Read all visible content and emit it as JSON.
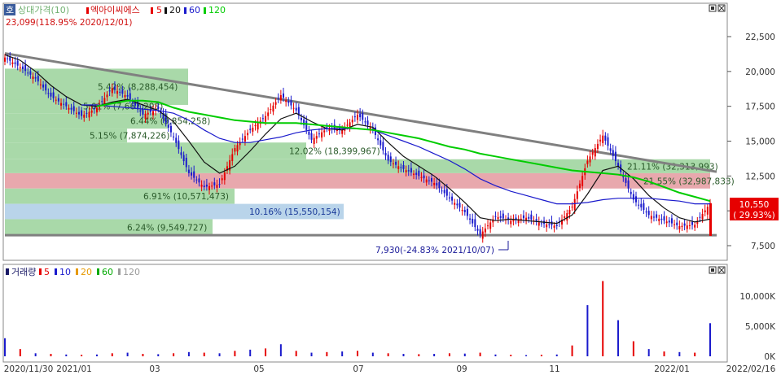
{
  "main_panel": {
    "legend": {
      "icon_glyph": "호",
      "indicator": "상대가격(10)",
      "ma_name": "엑아이씨에스",
      "ma_periods": [
        "5",
        "20",
        "60",
        "120"
      ],
      "ma_colors": [
        "#e60000",
        "#111111",
        "#1a1acc",
        "#00cc00"
      ]
    },
    "high_label": "23,099(118.95% 2020/12/01)",
    "low_label": "7,930(-24.83% 2021/10/07)",
    "current_price": "10,550",
    "current_change": "( 29.93%)"
  },
  "volume_panel": {
    "legend_title": "거래량",
    "legend_items": [
      {
        "label": "5",
        "color": "#e60000"
      },
      {
        "label": "10",
        "color": "#1a1acc"
      },
      {
        "label": "20",
        "color": "#e69900"
      },
      {
        "label": "60",
        "color": "#00aa00"
      },
      {
        "label": "120",
        "color": "#999999"
      }
    ]
  },
  "window_icons": [
    "maximize-icon",
    "close-icon"
  ],
  "chart_data": {
    "type": "candlestick",
    "y_axis": {
      "ticks": [
        7500,
        10000,
        12500,
        15000,
        17500,
        20000,
        22500
      ],
      "tick_labels": [
        "7,500",
        "10,000",
        "12,500",
        "15,000",
        "17,500",
        "20,000",
        "22,500"
      ]
    },
    "volume_axis": {
      "ticks": [
        0,
        5000,
        10000
      ],
      "tick_labels": [
        "0K",
        "5,000K",
        "10,000K"
      ]
    },
    "x_axis": {
      "tick_labels": [
        "2020/11/30",
        "2021/01",
        "03",
        "05",
        "07",
        "09",
        "11",
        "2022/01",
        "2022/02/16"
      ]
    },
    "price_bands": [
      {
        "label": "5.42% (8,288,454)",
        "low": 17600,
        "high": 20200,
        "color": "#a9d9a9"
      },
      {
        "label": "5.01% (7,667,298)",
        "low": 17000,
        "high": 18000,
        "color": "#a9d9a9"
      },
      {
        "label": "6.44% (9,854,258)",
        "low": 15900,
        "high": 17000,
        "color": "#a9d9a9"
      },
      {
        "label": "5.15% (7,874,226)",
        "low": 14900,
        "high": 15900,
        "color": "#a9d9a9"
      },
      {
        "label": "12.02% (18,399,967)",
        "low": 13700,
        "high": 14900,
        "color": "#a9d9a9"
      },
      {
        "label": "21.11% (32,313,993)",
        "low": 12700,
        "high": 13700,
        "color": "#a9d9a9"
      },
      {
        "label": "21.55% (32,987,833)",
        "low": 11600,
        "high": 12700,
        "color": "#e8a8ad"
      },
      {
        "label": "6.91% (10,571,473)",
        "low": 10500,
        "high": 11600,
        "color": "#a9d9a9"
      },
      {
        "label": "10.16% (15,550,154)",
        "low": 9400,
        "high": 10500,
        "color": "#b9d4ea"
      },
      {
        "label": "6.24% (9,549,727)",
        "low": 8250,
        "high": 9400,
        "color": "#a9d9a9"
      }
    ],
    "trend_line": {
      "from": [
        "2020/11/30",
        21300
      ],
      "to": [
        "2022/02/16",
        12800
      ]
    },
    "support_line": 8250,
    "series": [
      {
        "name": "close",
        "values": [
          21000,
          20300,
          19500,
          18200,
          17500,
          16800,
          17400,
          18800,
          18200,
          16900,
          17300,
          15300,
          12700,
          11700,
          11900,
          14500,
          15800,
          16800,
          18300,
          17200,
          15100,
          15900,
          15800,
          16900,
          15800,
          13600,
          13000,
          12500,
          12000,
          10900,
          9900,
          8300,
          9600,
          9300,
          9500,
          9100,
          8900,
          10300,
          13600,
          15400,
          13200,
          10800,
          9700,
          9300,
          8900,
          9000,
          10550
        ]
      },
      {
        "name": "20",
        "color": "#111111",
        "values": [
          21200,
          20800,
          20000,
          19000,
          18200,
          17600,
          17500,
          17800,
          18000,
          17600,
          17200,
          16400,
          15000,
          13500,
          12700,
          13200,
          14300,
          15500,
          16600,
          17000,
          16400,
          15900,
          15800,
          16200,
          16000,
          14900,
          13900,
          13200,
          12500,
          11600,
          10600,
          9500,
          9300,
          9400,
          9300,
          9200,
          9100,
          9700,
          11200,
          12900,
          13200,
          12300,
          11100,
          10200,
          9500,
          9200,
          9400
        ]
      },
      {
        "name": "60",
        "color": "#1a1acc",
        "values": [
          null,
          null,
          null,
          null,
          null,
          17600,
          17600,
          17500,
          17400,
          17300,
          17200,
          17000,
          16500,
          15800,
          15200,
          14900,
          14900,
          15100,
          15300,
          15600,
          15800,
          15900,
          15900,
          15900,
          15800,
          15400,
          15000,
          14600,
          14100,
          13600,
          13000,
          12300,
          11800,
          11400,
          11100,
          10800,
          10500,
          10500,
          10600,
          10800,
          10900,
          10900,
          10900,
          10800,
          10700,
          10500,
          10500
        ]
      },
      {
        "name": "120",
        "color": "#00cc00",
        "values": [
          null,
          null,
          null,
          null,
          null,
          null,
          17500,
          17700,
          17900,
          17900,
          17800,
          17400,
          17100,
          16900,
          16700,
          16500,
          16400,
          16300,
          16300,
          16300,
          16200,
          16100,
          16000,
          15900,
          15800,
          15600,
          15400,
          15200,
          14900,
          14600,
          14400,
          14100,
          13900,
          13700,
          13500,
          13300,
          13100,
          12900,
          12800,
          12700,
          12600,
          12400,
          12100,
          11700,
          11300,
          11000,
          10700
        ]
      }
    ],
    "volume_series": [
      {
        "name": "volume",
        "values": [
          3000,
          1200,
          500,
          400,
          300,
          250,
          300,
          500,
          600,
          400,
          350,
          500,
          700,
          600,
          500,
          900,
          1100,
          1300,
          2000,
          900,
          600,
          700,
          800,
          900,
          600,
          500,
          400,
          350,
          400,
          500,
          450,
          600,
          300,
          250,
          200,
          250,
          300,
          1800,
          8500,
          12500,
          6000,
          2500,
          1200,
          800,
          700,
          600,
          5500
        ]
      }
    ]
  }
}
